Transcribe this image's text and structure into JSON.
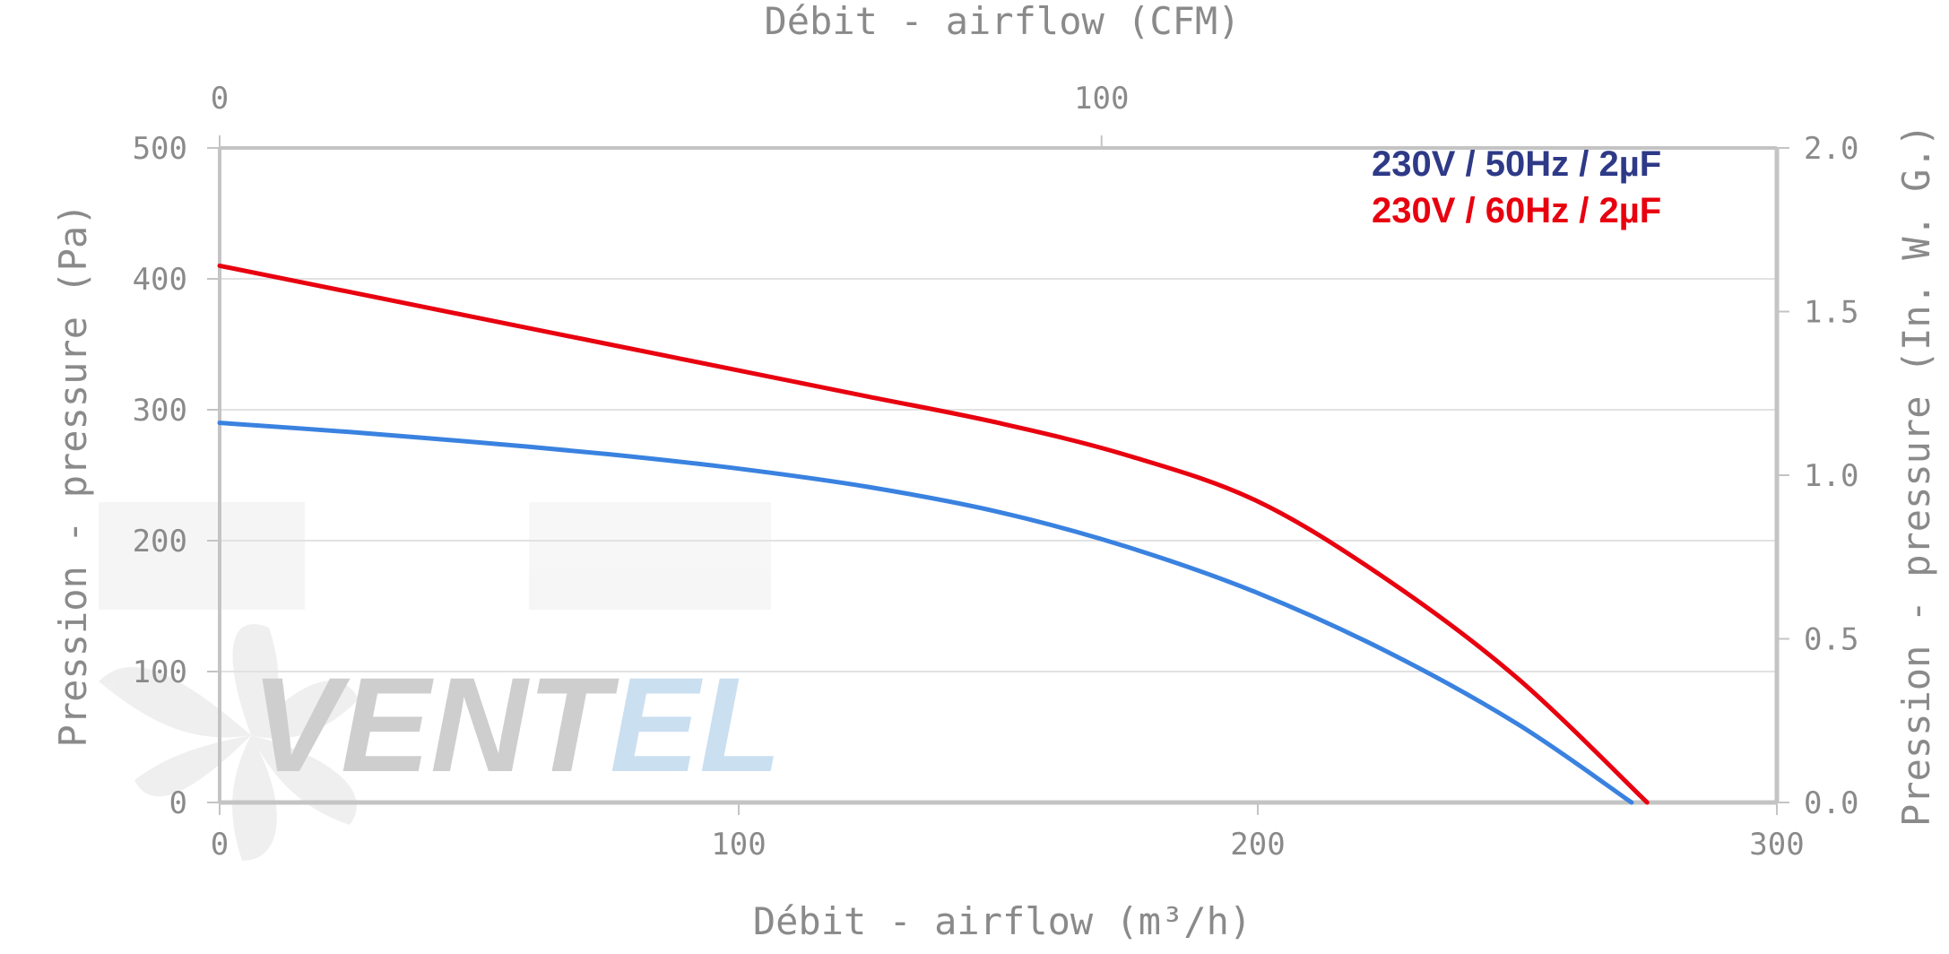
{
  "chart_data": {
    "type": "line",
    "xlabel": "Débit - airflow (m³/h)",
    "x2label": "Débit - airflow (CFM)",
    "ylabel": "Pression - pressure (Pa)",
    "y2label": "Pression - pressure (In. W. G.)",
    "xlim": [
      0,
      300
    ],
    "ylim": [
      0,
      500
    ],
    "x2lim": [
      0,
      176.57
    ],
    "y2lim": [
      0,
      2.0
    ],
    "xticks": [
      "0",
      "100",
      "200",
      "300"
    ],
    "x2ticks": [
      "0",
      "100"
    ],
    "yticks": [
      "0",
      "100",
      "200",
      "300",
      "400",
      "500"
    ],
    "y2ticks": [
      "0.0",
      "0.5",
      "1.0",
      "1.5",
      "2.0"
    ],
    "grid": true,
    "legend_position": "top-right",
    "series": [
      {
        "name": "230V / 50Hz / 2µF",
        "color": "#2e3a87",
        "line_color": "#3a82e0",
        "x": [
          0,
          25,
          50,
          75,
          100,
          125,
          150,
          175,
          200,
          225,
          250,
          272
        ],
        "y": [
          290,
          283,
          275,
          266,
          255,
          241,
          222,
          195,
          160,
          115,
          60,
          0
        ]
      },
      {
        "name": "230V / 60Hz / 2µF",
        "color": "#e8000f",
        "line_color": "#e8000f",
        "x": [
          0,
          25,
          50,
          75,
          100,
          125,
          150,
          175,
          200,
          225,
          250,
          275
        ],
        "y": [
          410,
          390,
          370,
          350,
          330,
          310,
          290,
          265,
          230,
          170,
          95,
          0
        ]
      }
    ]
  },
  "watermark": {
    "brand_part1": "VENT",
    "brand_part2": "EL",
    "color1": "#c9c9c9",
    "color2": "#c5dcef"
  }
}
